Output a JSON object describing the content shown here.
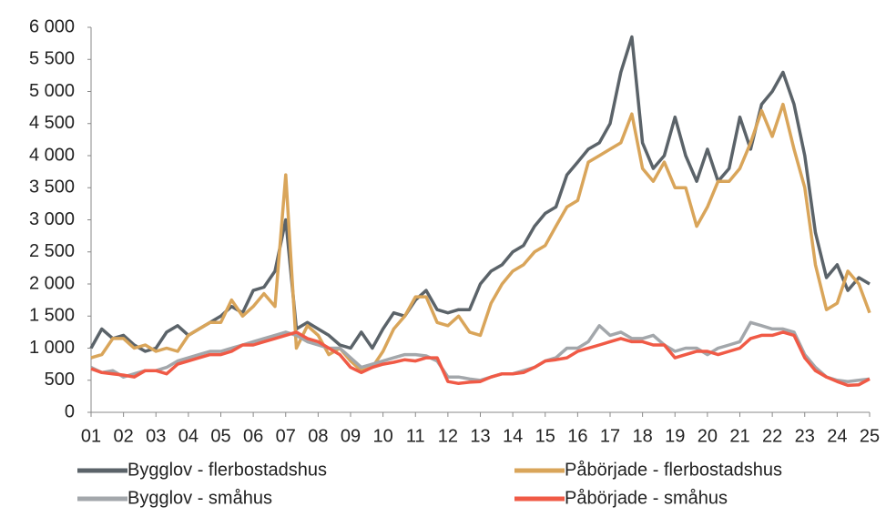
{
  "chart_data": {
    "type": "line",
    "x": [
      2001,
      2001.33,
      2001.67,
      2002,
      2002.33,
      2002.67,
      2003,
      2003.33,
      2003.67,
      2004,
      2004.33,
      2004.67,
      2005,
      2005.33,
      2005.67,
      2006,
      2006.33,
      2006.67,
      2007,
      2007.33,
      2007.67,
      2008,
      2008.33,
      2008.67,
      2009,
      2009.33,
      2009.67,
      2010,
      2010.33,
      2010.67,
      2011,
      2011.33,
      2011.67,
      2012,
      2012.33,
      2012.67,
      2013,
      2013.33,
      2013.67,
      2014,
      2014.33,
      2014.67,
      2015,
      2015.33,
      2015.67,
      2016,
      2016.33,
      2016.67,
      2017,
      2017.33,
      2017.67,
      2018,
      2018.33,
      2018.67,
      2019,
      2019.33,
      2019.67,
      2020,
      2020.33,
      2020.67,
      2021,
      2021.33,
      2021.67,
      2022,
      2022.33,
      2022.67,
      2023,
      2023.33,
      2023.67,
      2024,
      2024.33,
      2024.67,
      2025
    ],
    "series": [
      {
        "name": "Bygglov - flerbostadshus",
        "color": "#5b6369",
        "values": [
          1000,
          1300,
          1150,
          1200,
          1050,
          950,
          1000,
          1250,
          1350,
          1200,
          1300,
          1400,
          1500,
          1650,
          1550,
          1900,
          1950,
          2200,
          3000,
          1300,
          1400,
          1300,
          1200,
          1050,
          1000,
          1250,
          1000,
          1300,
          1550,
          1500,
          1750,
          1900,
          1600,
          1550,
          1600,
          1600,
          2000,
          2200,
          2300,
          2500,
          2600,
          2900,
          3100,
          3200,
          3700,
          3900,
          4100,
          4200,
          4500,
          5300,
          5850,
          4200,
          3800,
          4000,
          4600,
          4000,
          3600,
          4100,
          3600,
          3800,
          4600,
          4100,
          4800,
          5000,
          5300,
          4800,
          4000,
          2800,
          2100,
          2300,
          1900,
          2100,
          2000
        ]
      },
      {
        "name": "Påbörjade - flerbostadshus",
        "color": "#d9a55a",
        "values": [
          850,
          900,
          1150,
          1150,
          1000,
          1050,
          950,
          1000,
          950,
          1200,
          1300,
          1400,
          1400,
          1750,
          1500,
          1650,
          1850,
          1650,
          3700,
          1000,
          1350,
          1200,
          900,
          1000,
          800,
          650,
          700,
          950,
          1300,
          1500,
          1800,
          1800,
          1400,
          1350,
          1500,
          1250,
          1200,
          1700,
          2000,
          2200,
          2300,
          2500,
          2600,
          2900,
          3200,
          3300,
          3900,
          4000,
          4100,
          4200,
          4650,
          3800,
          3600,
          3900,
          3500,
          3500,
          2900,
          3200,
          3600,
          3600,
          3800,
          4200,
          4700,
          4300,
          4800,
          4100,
          3500,
          2300,
          1600,
          1700,
          2200,
          2000,
          1550
        ]
      },
      {
        "name": "Bygglov - småhus",
        "color": "#a3a7ab",
        "values": [
          700,
          620,
          650,
          550,
          600,
          650,
          650,
          700,
          800,
          850,
          900,
          950,
          950,
          1000,
          1050,
          1100,
          1150,
          1200,
          1250,
          1200,
          1100,
          1050,
          1000,
          1000,
          850,
          700,
          750,
          800,
          850,
          900,
          900,
          880,
          800,
          550,
          550,
          520,
          500,
          550,
          600,
          600,
          650,
          700,
          800,
          850,
          1000,
          1000,
          1100,
          1350,
          1200,
          1250,
          1150,
          1150,
          1200,
          1050,
          950,
          1000,
          1000,
          900,
          1000,
          1050,
          1100,
          1400,
          1350,
          1300,
          1300,
          1250,
          900,
          700,
          550,
          500,
          480,
          500,
          520
        ]
      },
      {
        "name": "Påbörjade - småhus",
        "color": "#f05a46",
        "values": [
          680,
          620,
          600,
          580,
          550,
          650,
          650,
          600,
          750,
          800,
          850,
          900,
          900,
          950,
          1050,
          1050,
          1100,
          1150,
          1200,
          1250,
          1150,
          1100,
          1000,
          900,
          700,
          620,
          700,
          750,
          780,
          820,
          800,
          850,
          850,
          480,
          450,
          470,
          480,
          550,
          600,
          600,
          620,
          700,
          800,
          820,
          850,
          950,
          1000,
          1050,
          1100,
          1150,
          1100,
          1100,
          1050,
          1050,
          850,
          900,
          950,
          950,
          900,
          950,
          1000,
          1150,
          1200,
          1200,
          1250,
          1200,
          850,
          650,
          550,
          480,
          420,
          430,
          520
        ]
      }
    ],
    "xlim": [
      2001,
      2025
    ],
    "xticks": [
      {
        "value": 2001,
        "label": "01"
      },
      {
        "value": 2002,
        "label": "02"
      },
      {
        "value": 2003,
        "label": "03"
      },
      {
        "value": 2004,
        "label": "04"
      },
      {
        "value": 2005,
        "label": "05"
      },
      {
        "value": 2006,
        "label": "06"
      },
      {
        "value": 2007,
        "label": "07"
      },
      {
        "value": 2008,
        "label": "08"
      },
      {
        "value": 2009,
        "label": "09"
      },
      {
        "value": 2010,
        "label": "10"
      },
      {
        "value": 2011,
        "label": "11"
      },
      {
        "value": 2012,
        "label": "12"
      },
      {
        "value": 2013,
        "label": "13"
      },
      {
        "value": 2014,
        "label": "14"
      },
      {
        "value": 2015,
        "label": "15"
      },
      {
        "value": 2016,
        "label": "16"
      },
      {
        "value": 2017,
        "label": "17"
      },
      {
        "value": 2018,
        "label": "18"
      },
      {
        "value": 2019,
        "label": "19"
      },
      {
        "value": 2020,
        "label": "20"
      },
      {
        "value": 2021,
        "label": "21"
      },
      {
        "value": 2022,
        "label": "22"
      },
      {
        "value": 2023,
        "label": "23"
      },
      {
        "value": 2024,
        "label": "24"
      },
      {
        "value": 2025,
        "label": "25"
      }
    ],
    "ylim": [
      0,
      6000
    ],
    "yticks": [
      0,
      500,
      {
        "value": 1000,
        "label": "1 000"
      },
      {
        "value": 1500,
        "label": "1 500"
      },
      {
        "value": 2000,
        "label": "2 000"
      },
      {
        "value": 2500,
        "label": "2 500"
      },
      {
        "value": 3000,
        "label": "3 000"
      },
      {
        "value": 3500,
        "label": "3 500"
      },
      {
        "value": 4000,
        "label": "4 000"
      },
      {
        "value": 4500,
        "label": "4 500"
      },
      {
        "value": 5000,
        "label": "5 000"
      },
      {
        "value": 5500,
        "label": "5 500"
      },
      {
        "value": 6000,
        "label": "6 000"
      }
    ],
    "grid": false,
    "legend": "bottom"
  }
}
